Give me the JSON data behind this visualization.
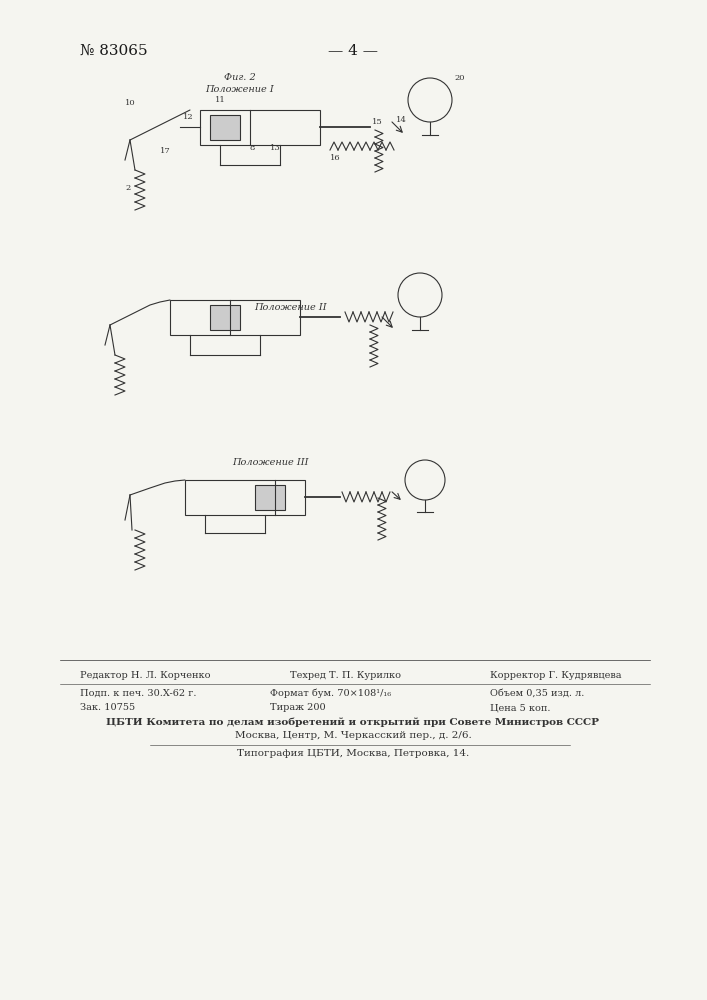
{
  "page_number": "№ 83065",
  "page_marker": "— 4 —",
  "bg_color": "#f5f5f0",
  "fig1_label": "Фиг. 2",
  "fig1_sublabel": "Положение I",
  "fig2_sublabel": "Положение II",
  "fig3_sublabel": "Положение III",
  "footer_line1_col1": "Редактор Н. Л. Корченко",
  "footer_line1_col2": "Техред Т. П. Курилко",
  "footer_line1_col3": "Корректор Г. Кудрявцева",
  "footer_line2_col1": "Подп. к печ. 30.X-62 г.",
  "footer_line2_col2": "Формат бум. 70×108¹/₁₆",
  "footer_line2_col3": "Объем 0,35 изд. л.",
  "footer_line3_col1": "Зак. 10755",
  "footer_line3_col2": "Тираж 200",
  "footer_line3_col3": "Цена 5 коп.",
  "footer_line4": "ЦБТИ Комитета по делам изобретений и открытий при Совете Министров СССР",
  "footer_line5": "Москва, Центр, М. Черкасский пер., д. 2/6.",
  "footer_line6": "Типография ЦБТИ, Москва, Петровка, 14."
}
